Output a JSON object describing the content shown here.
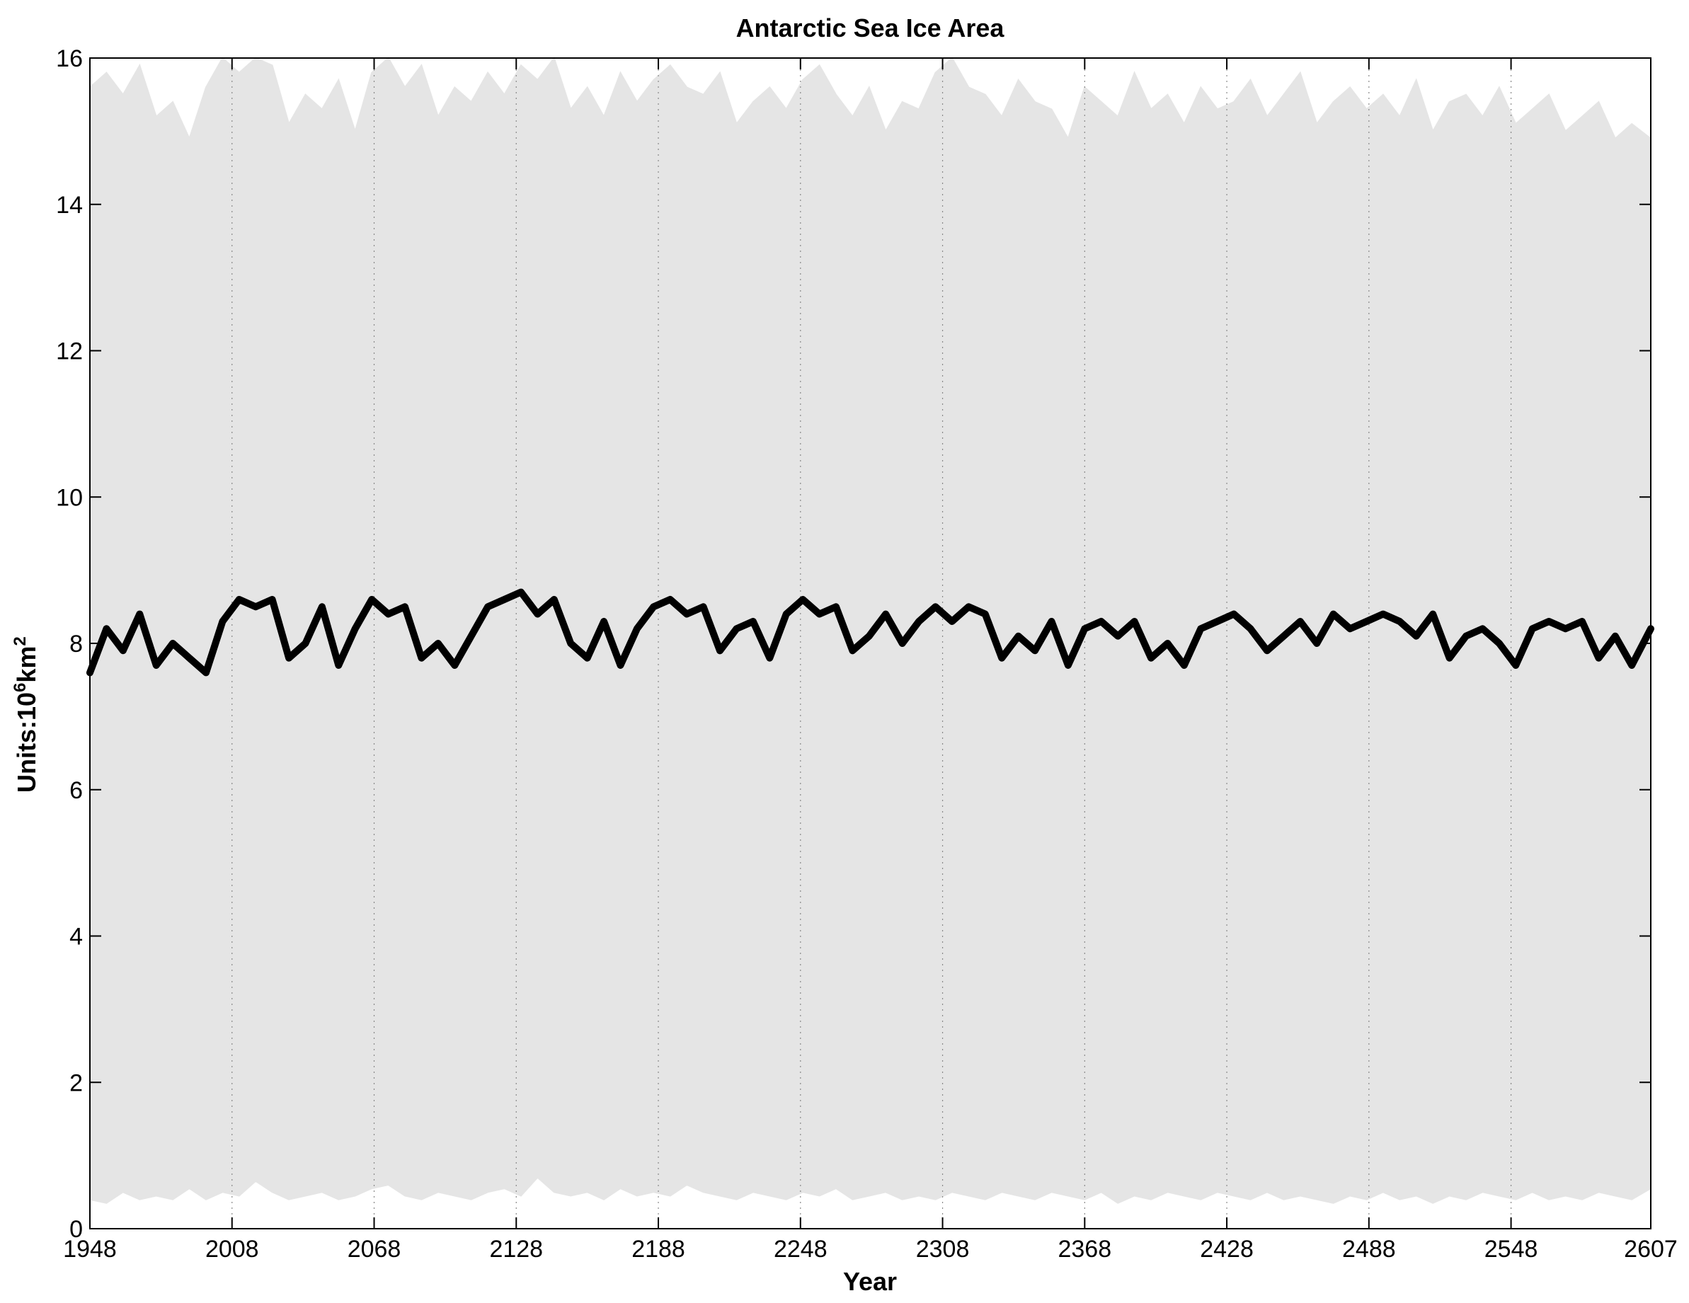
{
  "chart_data": {
    "type": "area",
    "title": "Antarctic Sea Ice Area",
    "xlabel": "Year",
    "ylabel_base": "Units:10",
    "ylabel_exp": "6",
    "ylabel_unit": "km",
    "ylabel_unit_exp": "2",
    "xlim": [
      1948,
      2607
    ],
    "ylim": [
      0,
      16
    ],
    "xticks": [
      1948,
      2008,
      2068,
      2128,
      2188,
      2248,
      2308,
      2368,
      2428,
      2488,
      2548,
      2607
    ],
    "yticks": [
      0,
      2,
      4,
      6,
      8,
      10,
      12,
      14,
      16
    ],
    "grid": "x-dotted",
    "colors": {
      "band": "#e5e5e5",
      "mean_line": "#000000",
      "axis": "#000000"
    },
    "series": [
      {
        "role": "seasonal-envelope-max",
        "x": [
          1948,
          1955,
          1962,
          1969,
          1976,
          1983,
          1990,
          1997,
          2004,
          2011,
          2018,
          2025,
          2032,
          2039,
          2046,
          2053,
          2060,
          2067,
          2074,
          2081,
          2088,
          2095,
          2102,
          2109,
          2116,
          2123,
          2130,
          2137,
          2144,
          2151,
          2158,
          2165,
          2172,
          2179,
          2186,
          2193,
          2200,
          2207,
          2214,
          2221,
          2228,
          2235,
          2242,
          2249,
          2256,
          2263,
          2270,
          2277,
          2284,
          2291,
          2298,
          2305,
          2312,
          2319,
          2326,
          2333,
          2340,
          2347,
          2354,
          2361,
          2368,
          2375,
          2382,
          2389,
          2396,
          2403,
          2410,
          2417,
          2424,
          2431,
          2438,
          2445,
          2452,
          2459,
          2466,
          2473,
          2480,
          2487,
          2494,
          2501,
          2508,
          2515,
          2522,
          2529,
          2536,
          2543,
          2550,
          2557,
          2564,
          2571,
          2578,
          2585,
          2592,
          2599,
          2607
        ],
        "values": [
          15.6,
          15.8,
          15.5,
          15.9,
          15.2,
          15.4,
          14.9,
          15.6,
          16.0,
          15.8,
          16.0,
          15.9,
          15.1,
          15.5,
          15.3,
          15.7,
          15.0,
          15.8,
          16.0,
          15.6,
          15.9,
          15.2,
          15.6,
          15.4,
          15.8,
          15.5,
          15.9,
          15.7,
          16.0,
          15.3,
          15.6,
          15.2,
          15.8,
          15.4,
          15.7,
          15.9,
          15.6,
          15.5,
          15.8,
          15.1,
          15.4,
          15.6,
          15.3,
          15.7,
          15.9,
          15.5,
          15.2,
          15.6,
          15.0,
          15.4,
          15.3,
          15.8,
          16.0,
          15.6,
          15.5,
          15.2,
          15.7,
          15.4,
          15.3,
          14.9,
          15.6,
          15.4,
          15.2,
          15.8,
          15.3,
          15.5,
          15.1,
          15.6,
          15.3,
          15.4,
          15.7,
          15.2,
          15.5,
          15.8,
          15.1,
          15.4,
          15.6,
          15.3,
          15.5,
          15.2,
          15.7,
          15.0,
          15.4,
          15.5,
          15.2,
          15.6,
          15.1,
          15.3,
          15.5,
          15.0,
          15.2,
          15.4,
          14.9,
          15.1,
          14.9
        ]
      },
      {
        "role": "seasonal-envelope-min",
        "x": [
          1948,
          1955,
          1962,
          1969,
          1976,
          1983,
          1990,
          1997,
          2004,
          2011,
          2018,
          2025,
          2032,
          2039,
          2046,
          2053,
          2060,
          2067,
          2074,
          2081,
          2088,
          2095,
          2102,
          2109,
          2116,
          2123,
          2130,
          2137,
          2144,
          2151,
          2158,
          2165,
          2172,
          2179,
          2186,
          2193,
          2200,
          2207,
          2214,
          2221,
          2228,
          2235,
          2242,
          2249,
          2256,
          2263,
          2270,
          2277,
          2284,
          2291,
          2298,
          2305,
          2312,
          2319,
          2326,
          2333,
          2340,
          2347,
          2354,
          2361,
          2368,
          2375,
          2382,
          2389,
          2396,
          2403,
          2410,
          2417,
          2424,
          2431,
          2438,
          2445,
          2452,
          2459,
          2466,
          2473,
          2480,
          2487,
          2494,
          2501,
          2508,
          2515,
          2522,
          2529,
          2536,
          2543,
          2550,
          2557,
          2564,
          2571,
          2578,
          2585,
          2592,
          2599,
          2607
        ],
        "values": [
          0.4,
          0.35,
          0.5,
          0.4,
          0.45,
          0.4,
          0.55,
          0.4,
          0.5,
          0.45,
          0.65,
          0.5,
          0.4,
          0.45,
          0.5,
          0.4,
          0.45,
          0.55,
          0.6,
          0.45,
          0.4,
          0.5,
          0.45,
          0.4,
          0.5,
          0.55,
          0.45,
          0.7,
          0.5,
          0.45,
          0.5,
          0.4,
          0.55,
          0.45,
          0.5,
          0.45,
          0.6,
          0.5,
          0.45,
          0.4,
          0.5,
          0.45,
          0.4,
          0.5,
          0.45,
          0.55,
          0.4,
          0.45,
          0.5,
          0.4,
          0.45,
          0.4,
          0.5,
          0.45,
          0.4,
          0.5,
          0.45,
          0.4,
          0.5,
          0.45,
          0.4,
          0.5,
          0.35,
          0.45,
          0.4,
          0.5,
          0.45,
          0.4,
          0.5,
          0.45,
          0.4,
          0.5,
          0.4,
          0.45,
          0.4,
          0.35,
          0.45,
          0.4,
          0.5,
          0.4,
          0.45,
          0.35,
          0.45,
          0.4,
          0.5,
          0.45,
          0.4,
          0.5,
          0.4,
          0.45,
          0.4,
          0.5,
          0.45,
          0.4,
          0.55
        ]
      },
      {
        "role": "annual-mean",
        "x": [
          1948,
          1955,
          1962,
          1969,
          1976,
          1983,
          1990,
          1997,
          2004,
          2011,
          2018,
          2025,
          2032,
          2039,
          2046,
          2053,
          2060,
          2067,
          2074,
          2081,
          2088,
          2095,
          2102,
          2109,
          2116,
          2123,
          2130,
          2137,
          2144,
          2151,
          2158,
          2165,
          2172,
          2179,
          2186,
          2193,
          2200,
          2207,
          2214,
          2221,
          2228,
          2235,
          2242,
          2249,
          2256,
          2263,
          2270,
          2277,
          2284,
          2291,
          2298,
          2305,
          2312,
          2319,
          2326,
          2333,
          2340,
          2347,
          2354,
          2361,
          2368,
          2375,
          2382,
          2389,
          2396,
          2403,
          2410,
          2417,
          2424,
          2431,
          2438,
          2445,
          2452,
          2459,
          2466,
          2473,
          2480,
          2487,
          2494,
          2501,
          2508,
          2515,
          2522,
          2529,
          2536,
          2543,
          2550,
          2557,
          2564,
          2571,
          2578,
          2585,
          2592,
          2599,
          2607
        ],
        "values": [
          7.6,
          8.2,
          7.9,
          8.4,
          7.7,
          8.0,
          7.8,
          7.6,
          8.3,
          8.6,
          8.5,
          8.6,
          7.8,
          8.0,
          8.5,
          7.7,
          8.2,
          8.6,
          8.4,
          8.5,
          7.8,
          8.0,
          7.7,
          8.1,
          8.5,
          8.6,
          8.7,
          8.4,
          8.6,
          8.0,
          7.8,
          8.3,
          7.7,
          8.2,
          8.5,
          8.6,
          8.4,
          8.5,
          7.9,
          8.2,
          8.3,
          7.8,
          8.4,
          8.6,
          8.4,
          8.5,
          7.9,
          8.1,
          8.4,
          8.0,
          8.3,
          8.5,
          8.3,
          8.5,
          8.4,
          7.8,
          8.1,
          7.9,
          8.3,
          7.7,
          8.2,
          8.3,
          8.1,
          8.3,
          7.8,
          8.0,
          7.7,
          8.2,
          8.3,
          8.4,
          8.2,
          7.9,
          8.1,
          8.3,
          8.0,
          8.4,
          8.2,
          8.3,
          8.4,
          8.3,
          8.1,
          8.4,
          7.8,
          8.1,
          8.2,
          8.0,
          7.7,
          8.2,
          8.3,
          8.2,
          8.3,
          7.8,
          8.1,
          7.7,
          8.2
        ]
      }
    ]
  }
}
